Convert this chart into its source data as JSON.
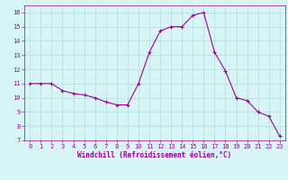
{
  "x": [
    0,
    1,
    2,
    3,
    4,
    5,
    6,
    7,
    8,
    9,
    10,
    11,
    12,
    13,
    14,
    15,
    16,
    17,
    18,
    19,
    20,
    21,
    22,
    23
  ],
  "y": [
    11.0,
    11.0,
    11.0,
    10.5,
    10.3,
    10.2,
    10.0,
    9.7,
    9.5,
    9.5,
    11.0,
    13.2,
    14.7,
    15.0,
    15.0,
    15.8,
    16.0,
    13.2,
    11.9,
    10.0,
    9.8,
    9.0,
    8.7,
    7.3
  ],
  "line_color": "#990099",
  "marker": "+",
  "marker_size": 3,
  "marker_lw": 0.8,
  "bg_color": "#d8f5f5",
  "grid_color": "#b0dede",
  "tick_color": "#990099",
  "label_color": "#990099",
  "xlabel": "Windchill (Refroidissement éolien,°C)",
  "ylim": [
    7,
    16.5
  ],
  "xlim": [
    -0.5,
    23.5
  ],
  "yticks": [
    7,
    8,
    9,
    10,
    11,
    12,
    13,
    14,
    15,
    16
  ],
  "xticks": [
    0,
    1,
    2,
    3,
    4,
    5,
    6,
    7,
    8,
    9,
    10,
    11,
    12,
    13,
    14,
    15,
    16,
    17,
    18,
    19,
    20,
    21,
    22,
    23
  ],
  "tick_fontsize": 5.0,
  "xlabel_fontsize": 5.5,
  "linewidth": 0.8
}
